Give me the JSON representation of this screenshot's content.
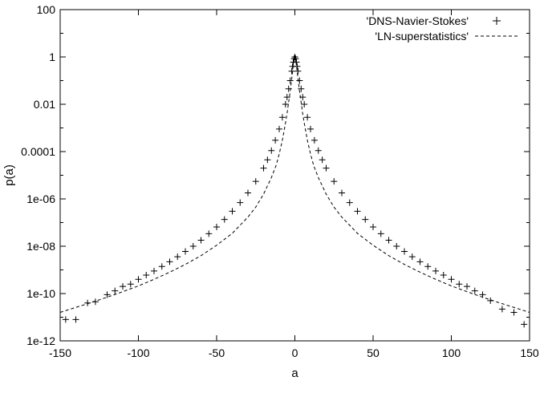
{
  "chart_data": {
    "type": "scatter",
    "xlabel": "a",
    "ylabel": "p(a)",
    "xlim": [
      -150,
      150
    ],
    "ylim": [
      1e-12,
      100
    ],
    "yscale": "log",
    "grid": false,
    "legend_position": "top-right",
    "x_ticks": [
      -150,
      -100,
      -50,
      0,
      50,
      100,
      150
    ],
    "x_tick_labels": [
      "-150",
      "-100",
      "-50",
      "0",
      "50",
      "100",
      "150"
    ],
    "y_ticks": [
      1e-12,
      1e-10,
      1e-08,
      1e-06,
      0.0001,
      0.01,
      1,
      100
    ],
    "y_tick_labels": [
      "1e-12",
      "1e-10",
      "1e-08",
      "1e-06",
      "0.0001",
      "0.01",
      "1",
      "100"
    ],
    "series": [
      {
        "name": "'DNS-Navier-Stokes'",
        "style": "points",
        "marker": "+",
        "x": [
          -146.5,
          -140,
          -132.5,
          -127.5,
          -120,
          -115,
          -110,
          -105,
          -100,
          -95,
          -90,
          -85,
          -80,
          -75,
          -70,
          -65,
          -60,
          -55,
          -50,
          -45,
          -40,
          -35,
          -30,
          -25,
          -20,
          -17.5,
          -15,
          -12.5,
          -10,
          -8,
          -6,
          -5,
          -4,
          -3,
          -2,
          -1.5,
          -1,
          -0.5,
          0,
          0.5,
          1,
          1.5,
          2,
          3,
          4,
          5,
          6,
          8,
          10,
          12.5,
          15,
          17.5,
          20,
          25,
          30,
          35,
          40,
          45,
          50,
          55,
          60,
          65,
          70,
          75,
          80,
          85,
          90,
          95,
          100,
          105,
          110,
          115,
          120,
          125,
          132.5,
          140,
          146.5
        ],
        "y": [
          8e-12,
          8e-12,
          4e-11,
          4.5e-11,
          9e-11,
          1.3e-10,
          2e-10,
          2.5e-10,
          4e-10,
          6e-10,
          9e-10,
          1.4e-09,
          2.2e-09,
          3.6e-09,
          6e-09,
          1e-08,
          1.8e-08,
          3.4e-08,
          6.5e-08,
          1.35e-07,
          3e-07,
          7e-07,
          1.8e-06,
          5.5e-06,
          2e-05,
          4.5e-05,
          0.00011,
          0.0003,
          0.0009,
          0.0028,
          0.01,
          0.02,
          0.045,
          0.1,
          0.25,
          0.4,
          0.6,
          0.85,
          1,
          0.85,
          0.6,
          0.4,
          0.25,
          0.1,
          0.045,
          0.02,
          0.01,
          0.0028,
          0.0009,
          0.0003,
          0.00011,
          4.5e-05,
          2e-05,
          5.5e-06,
          1.8e-06,
          7e-07,
          3e-07,
          1.35e-07,
          6.5e-08,
          3.4e-08,
          1.8e-08,
          1e-08,
          6e-09,
          3.6e-09,
          2.2e-09,
          1.4e-09,
          9e-10,
          6e-10,
          4e-10,
          2.5e-10,
          2e-10,
          1.3e-10,
          9e-11,
          5e-11,
          2.2e-11,
          1.6e-11,
          5e-12
        ]
      },
      {
        "name": "'LN-superstatistics'",
        "style": "dashed-line",
        "x": [
          -150,
          -140,
          -130,
          -120,
          -110,
          -100,
          -90,
          -80,
          -70,
          -60,
          -50,
          -40,
          -30,
          -25,
          -20,
          -15,
          -12,
          -10,
          -8,
          -6,
          -5,
          -4,
          -3,
          -2,
          -1,
          -0.5,
          0,
          0.5,
          1,
          2,
          3,
          4,
          5,
          6,
          8,
          10,
          12,
          15,
          20,
          25,
          30,
          40,
          50,
          60,
          70,
          80,
          90,
          100,
          110,
          120,
          130,
          140,
          150
        ],
        "y": [
          1.6e-11,
          2.6e-11,
          4.2e-11,
          7e-11,
          1.2e-10,
          2.1e-10,
          4e-10,
          8e-10,
          1.7e-09,
          4e-09,
          1.1e-08,
          3.5e-08,
          1.7e-07,
          4.5e-07,
          1.6e-06,
          8e-06,
          2.6e-05,
          8e-05,
          0.0003,
          0.0016,
          0.004,
          0.012,
          0.035,
          0.12,
          0.45,
          0.75,
          1,
          0.75,
          0.45,
          0.12,
          0.035,
          0.012,
          0.004,
          0.0016,
          0.0003,
          8e-05,
          2.6e-05,
          8e-06,
          1.6e-06,
          4.5e-07,
          1.7e-07,
          3.5e-08,
          1.1e-08,
          4e-09,
          1.7e-09,
          8e-10,
          4e-10,
          2.1e-10,
          1.2e-10,
          7e-11,
          4.2e-11,
          2.6e-11,
          1.6e-11
        ]
      }
    ]
  }
}
